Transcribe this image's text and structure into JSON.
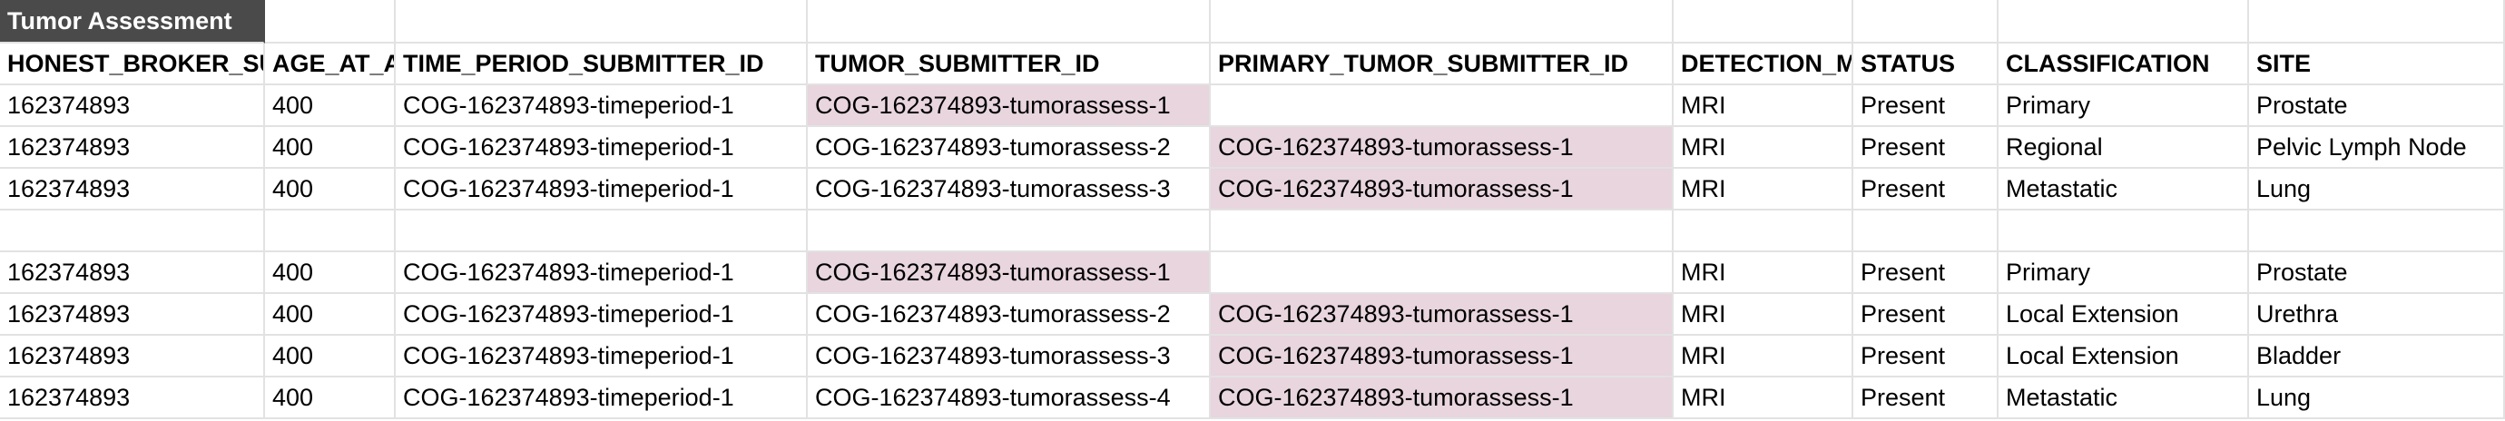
{
  "sheet": {
    "title": "Tumor Assessment",
    "highlight_color": "#e8d5de",
    "title_bg_color": "#4a4a4a",
    "headers": [
      "HONEST_BROKER_SUBJECT_ID",
      "AGE_AT_ASSESSMENT",
      "TIME_PERIOD_SUBMITTER_ID",
      "TUMOR_SUBMITTER_ID",
      "PRIMARY_TUMOR_SUBMITTER_ID",
      "DETECTION_METHOD",
      "STATUS",
      "CLASSIFICATION",
      "SITE"
    ],
    "rows": [
      [
        "162374893",
        "400",
        "COG-162374893-timeperiod-1",
        "COG-162374893-tumorassess-1",
        "",
        "MRI",
        "Present",
        "Primary",
        "Prostate"
      ],
      [
        "162374893",
        "400",
        "COG-162374893-timeperiod-1",
        "COG-162374893-tumorassess-2",
        "COG-162374893-tumorassess-1",
        "MRI",
        "Present",
        "Regional",
        "Pelvic Lymph Node"
      ],
      [
        "162374893",
        "400",
        "COG-162374893-timeperiod-1",
        "COG-162374893-tumorassess-3",
        "COG-162374893-tumorassess-1",
        "MRI",
        "Present",
        "Metastatic",
        "Lung"
      ],
      [
        "",
        "",
        "",
        "",
        "",
        "",
        "",
        "",
        ""
      ],
      [
        "162374893",
        "400",
        "COG-162374893-timeperiod-1",
        "COG-162374893-tumorassess-1",
        "",
        "MRI",
        "Present",
        "Primary",
        "Prostate"
      ],
      [
        "162374893",
        "400",
        "COG-162374893-timeperiod-1",
        "COG-162374893-tumorassess-2",
        "COG-162374893-tumorassess-1",
        "MRI",
        "Present",
        "Local Extension",
        "Urethra"
      ],
      [
        "162374893",
        "400",
        "COG-162374893-timeperiod-1",
        "COG-162374893-tumorassess-3",
        "COG-162374893-tumorassess-1",
        "MRI",
        "Present",
        "Local Extension",
        "Bladder"
      ],
      [
        "162374893",
        "400",
        "COG-162374893-timeperiod-1",
        "COG-162374893-tumorassess-4",
        "COG-162374893-tumorassess-1",
        "MRI",
        "Present",
        "Metastatic",
        "Lung"
      ]
    ]
  }
}
